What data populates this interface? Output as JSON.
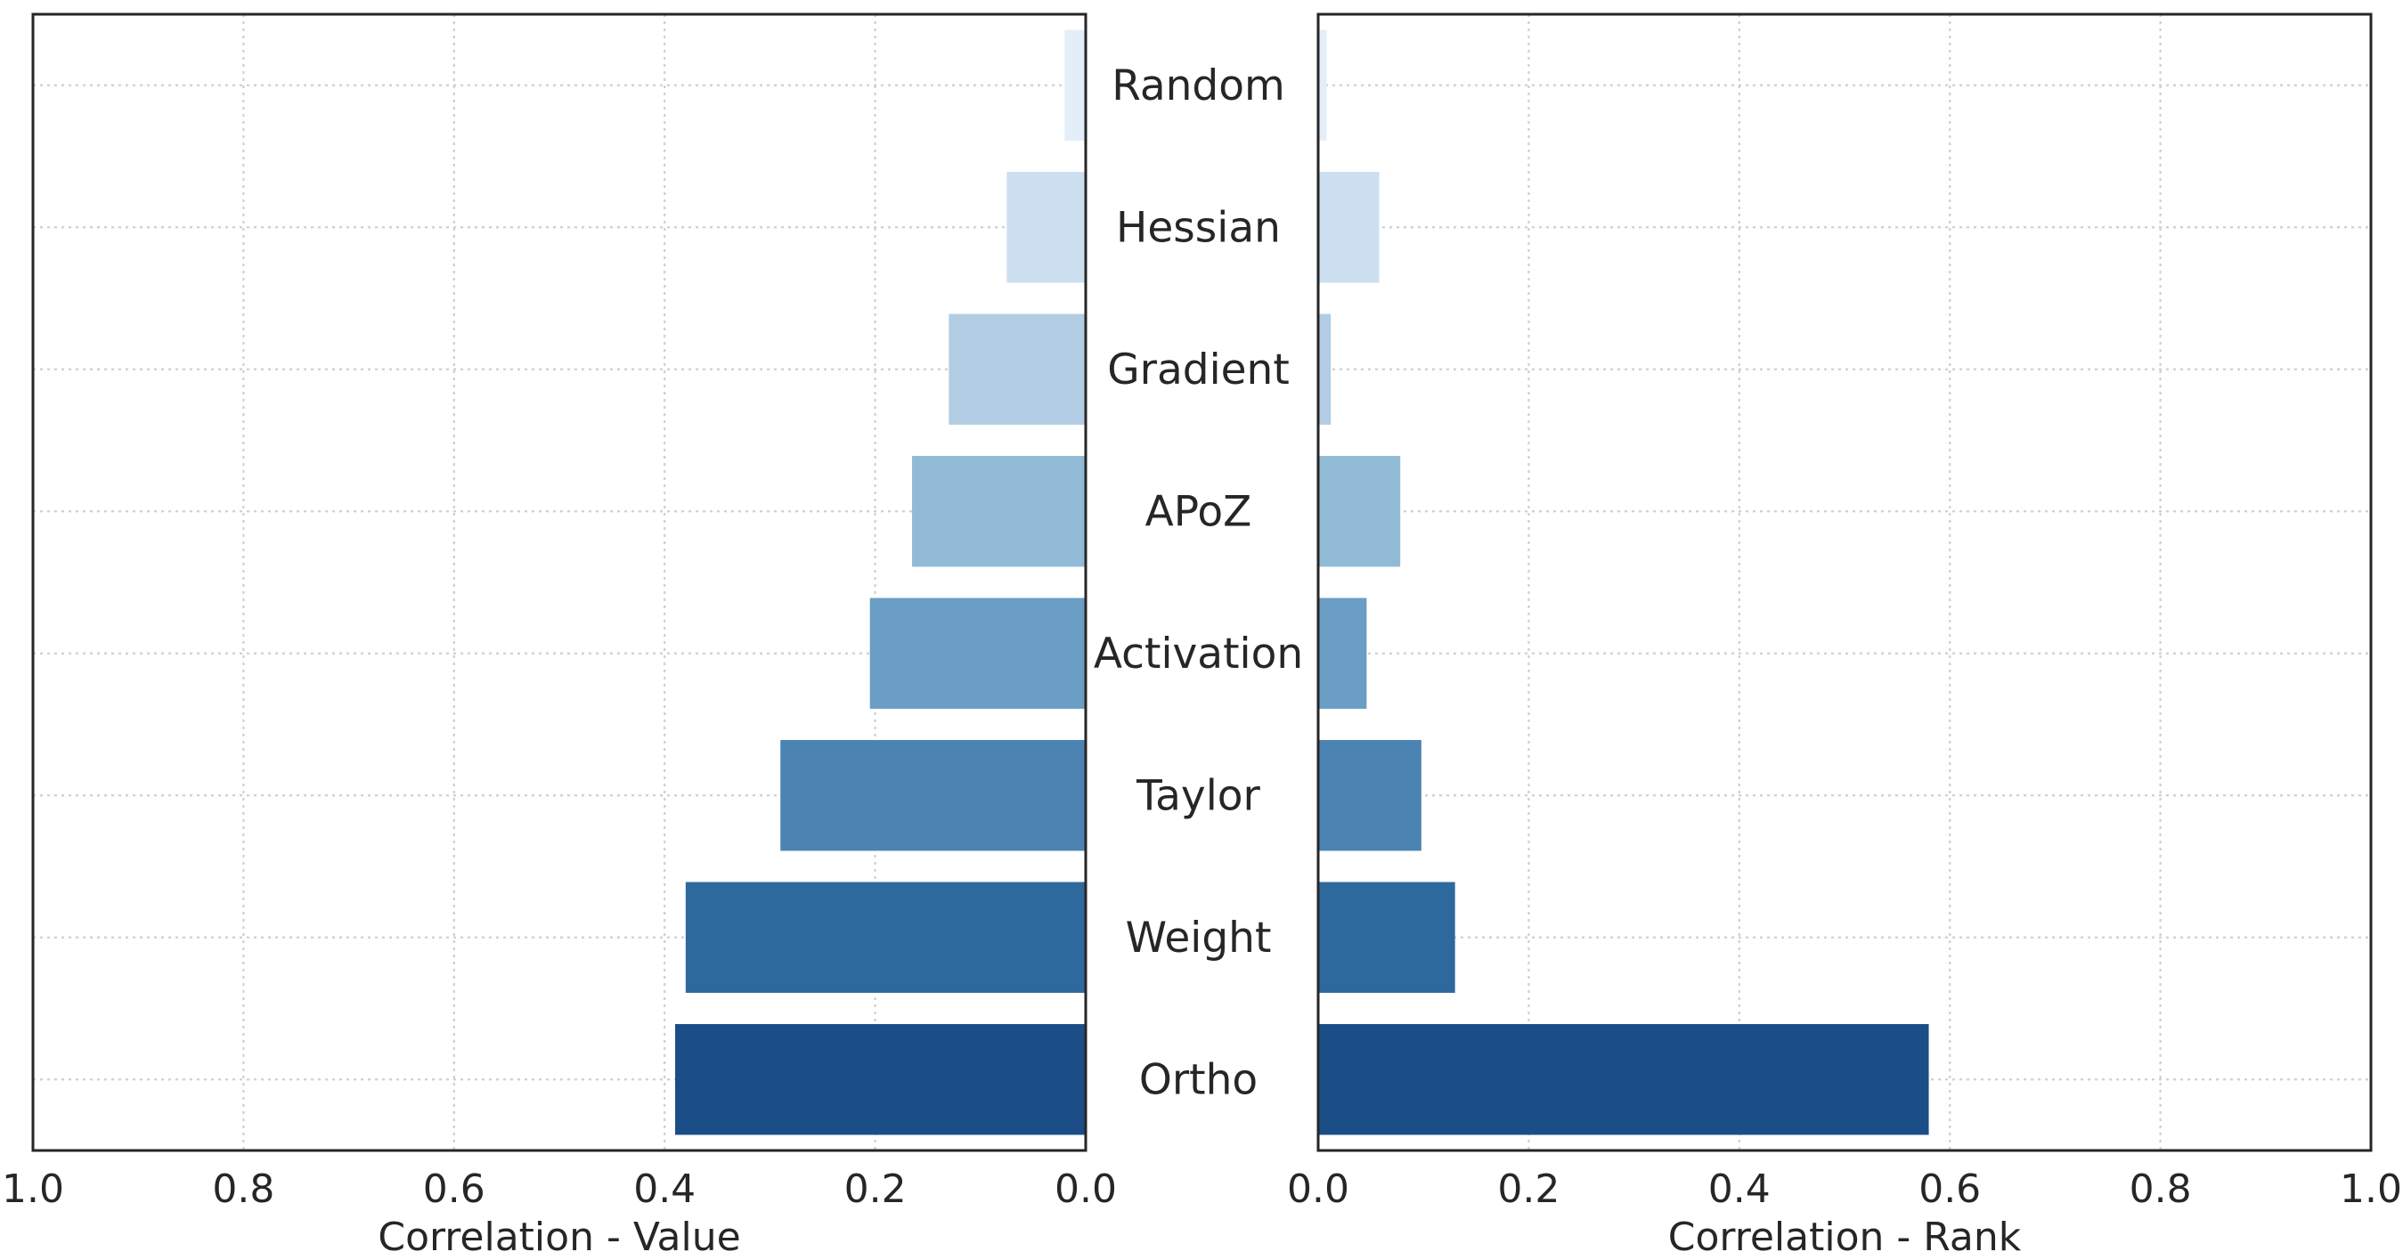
{
  "chart_data": {
    "type": "bar",
    "orientation": "horizontal",
    "categories": [
      "Random",
      "Hessian",
      "Gradient",
      "APoZ",
      "Activation",
      "Taylor",
      "Weight",
      "Ortho"
    ],
    "colors": [
      "#e3eef9",
      "#ccdff1",
      "#b2cde3",
      "#91bad6",
      "#6a9ec4",
      "#4b83b3",
      "#2e699e",
      "#1b4e86"
    ],
    "grid": true,
    "panels": [
      {
        "name": "value",
        "xlabel": "Correlation - Value",
        "direction": "reversed",
        "xlim": [
          0.0,
          1.0
        ],
        "xticks": [
          "0.0",
          "0.2",
          "0.4",
          "0.6",
          "0.8",
          "1.0"
        ],
        "values": [
          0.02,
          0.075,
          0.13,
          0.165,
          0.205,
          0.29,
          0.38,
          0.39
        ]
      },
      {
        "name": "rank",
        "xlabel": "Correlation - Rank",
        "direction": "normal",
        "xlim": [
          0.0,
          1.0
        ],
        "xticks": [
          "0.0",
          "0.2",
          "0.4",
          "0.6",
          "0.8",
          "1.0"
        ],
        "values": [
          0.008,
          0.058,
          0.012,
          0.078,
          0.046,
          0.098,
          0.13,
          0.58
        ]
      }
    ]
  }
}
